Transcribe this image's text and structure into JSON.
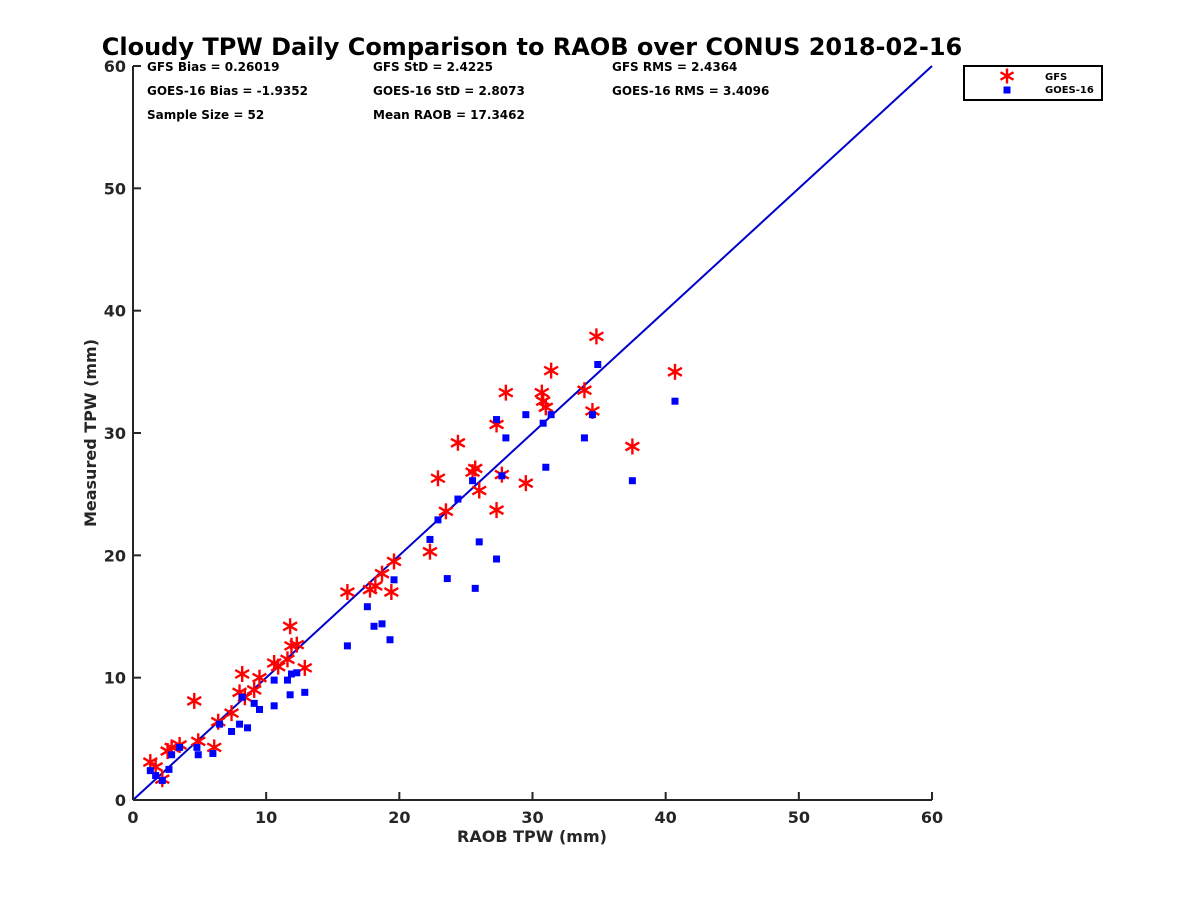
{
  "chart_data": {
    "type": "scatter",
    "title": "Cloudy TPW Daily Comparison to RAOB over CONUS 2018-02-16",
    "xlabel": "RAOB TPW (mm)",
    "ylabel": "Measured TPW (mm)",
    "xlim": [
      0,
      60
    ],
    "ylim": [
      0,
      60
    ],
    "xticks": [
      "0",
      "10",
      "20",
      "30",
      "40",
      "50",
      "60"
    ],
    "yticks": [
      "0",
      "10",
      "20",
      "30",
      "40",
      "50",
      "60"
    ],
    "grid": false,
    "legend_position": "top-right-outside",
    "reference_line": {
      "from": [
        0,
        0
      ],
      "to": [
        60,
        60
      ],
      "color": "#0000cc"
    },
    "stats": [
      [
        "GFS Bias = 0.26019",
        "GFS StD = 2.4225",
        "GFS RMS = 2.4364"
      ],
      [
        "GOES-16 Bias = -1.9352",
        "GOES-16 StD = 2.8073",
        "GOES-16 RMS = 3.4096"
      ],
      [
        "Sample Size = 52",
        "Mean RAOB = 17.3462",
        ""
      ]
    ],
    "series": [
      {
        "name": "GFS",
        "marker": "asterisk",
        "color": "#ff0000",
        "points": [
          [
            1.3,
            3.1
          ],
          [
            1.7,
            2.7
          ],
          [
            2.2,
            1.7
          ],
          [
            2.6,
            4.0
          ],
          [
            2.9,
            4.3
          ],
          [
            3.5,
            4.5
          ],
          [
            4.6,
            8.1
          ],
          [
            4.9,
            4.8
          ],
          [
            6.1,
            4.3
          ],
          [
            6.4,
            6.4
          ],
          [
            7.4,
            7.1
          ],
          [
            8.0,
            8.8
          ],
          [
            8.2,
            10.3
          ],
          [
            8.4,
            8.4
          ],
          [
            9.1,
            9.0
          ],
          [
            9.5,
            10.0
          ],
          [
            10.6,
            11.2
          ],
          [
            10.9,
            10.9
          ],
          [
            11.6,
            11.5
          ],
          [
            11.8,
            14.2
          ],
          [
            11.9,
            12.6
          ],
          [
            12.3,
            12.7
          ],
          [
            12.9,
            10.8
          ],
          [
            16.1,
            17.0
          ],
          [
            17.8,
            17.2
          ],
          [
            18.2,
            17.5
          ],
          [
            18.7,
            18.5
          ],
          [
            19.4,
            17.0
          ],
          [
            19.6,
            19.5
          ],
          [
            22.3,
            20.3
          ],
          [
            22.9,
            26.3
          ],
          [
            23.5,
            23.6
          ],
          [
            24.4,
            29.2
          ],
          [
            25.5,
            26.8
          ],
          [
            25.7,
            27.1
          ],
          [
            26.0,
            25.3
          ],
          [
            27.3,
            23.7
          ],
          [
            27.3,
            30.7
          ],
          [
            27.7,
            26.6
          ],
          [
            28.0,
            33.3
          ],
          [
            29.5,
            25.9
          ],
          [
            30.7,
            33.3
          ],
          [
            30.8,
            32.6
          ],
          [
            31.0,
            32.1
          ],
          [
            31.4,
            35.1
          ],
          [
            33.9,
            33.5
          ],
          [
            34.5,
            31.8
          ],
          [
            34.8,
            37.9
          ],
          [
            37.5,
            28.9
          ],
          [
            40.7,
            35.0
          ]
        ]
      },
      {
        "name": "GOES-16",
        "marker": "square",
        "color": "#0000ff",
        "points": [
          [
            1.3,
            2.4
          ],
          [
            1.7,
            2.0
          ],
          [
            2.2,
            1.6
          ],
          [
            2.7,
            2.5
          ],
          [
            2.9,
            3.7
          ],
          [
            3.5,
            4.3
          ],
          [
            4.8,
            4.3
          ],
          [
            4.9,
            3.7
          ],
          [
            6.0,
            3.8
          ],
          [
            6.5,
            6.2
          ],
          [
            7.4,
            5.6
          ],
          [
            8.0,
            6.2
          ],
          [
            8.2,
            8.4
          ],
          [
            8.6,
            5.9
          ],
          [
            9.1,
            7.9
          ],
          [
            9.5,
            7.4
          ],
          [
            10.6,
            9.8
          ],
          [
            10.6,
            7.7
          ],
          [
            11.6,
            9.8
          ],
          [
            11.8,
            8.6
          ],
          [
            11.9,
            10.3
          ],
          [
            12.3,
            10.4
          ],
          [
            12.9,
            8.8
          ],
          [
            16.1,
            12.6
          ],
          [
            17.6,
            15.8
          ],
          [
            18.1,
            14.2
          ],
          [
            18.7,
            14.4
          ],
          [
            19.3,
            13.1
          ],
          [
            19.6,
            18.0
          ],
          [
            22.3,
            21.3
          ],
          [
            22.9,
            22.9
          ],
          [
            23.6,
            18.1
          ],
          [
            24.4,
            24.6
          ],
          [
            25.5,
            26.1
          ],
          [
            25.7,
            17.3
          ],
          [
            26.0,
            21.1
          ],
          [
            27.3,
            19.7
          ],
          [
            27.3,
            31.1
          ],
          [
            27.7,
            26.5
          ],
          [
            28.0,
            29.6
          ],
          [
            29.5,
            31.5
          ],
          [
            30.8,
            30.8
          ],
          [
            31.0,
            27.2
          ],
          [
            31.4,
            31.5
          ],
          [
            33.9,
            29.6
          ],
          [
            34.5,
            31.5
          ],
          [
            34.9,
            35.6
          ],
          [
            37.5,
            26.1
          ],
          [
            40.7,
            32.6
          ]
        ]
      }
    ]
  }
}
